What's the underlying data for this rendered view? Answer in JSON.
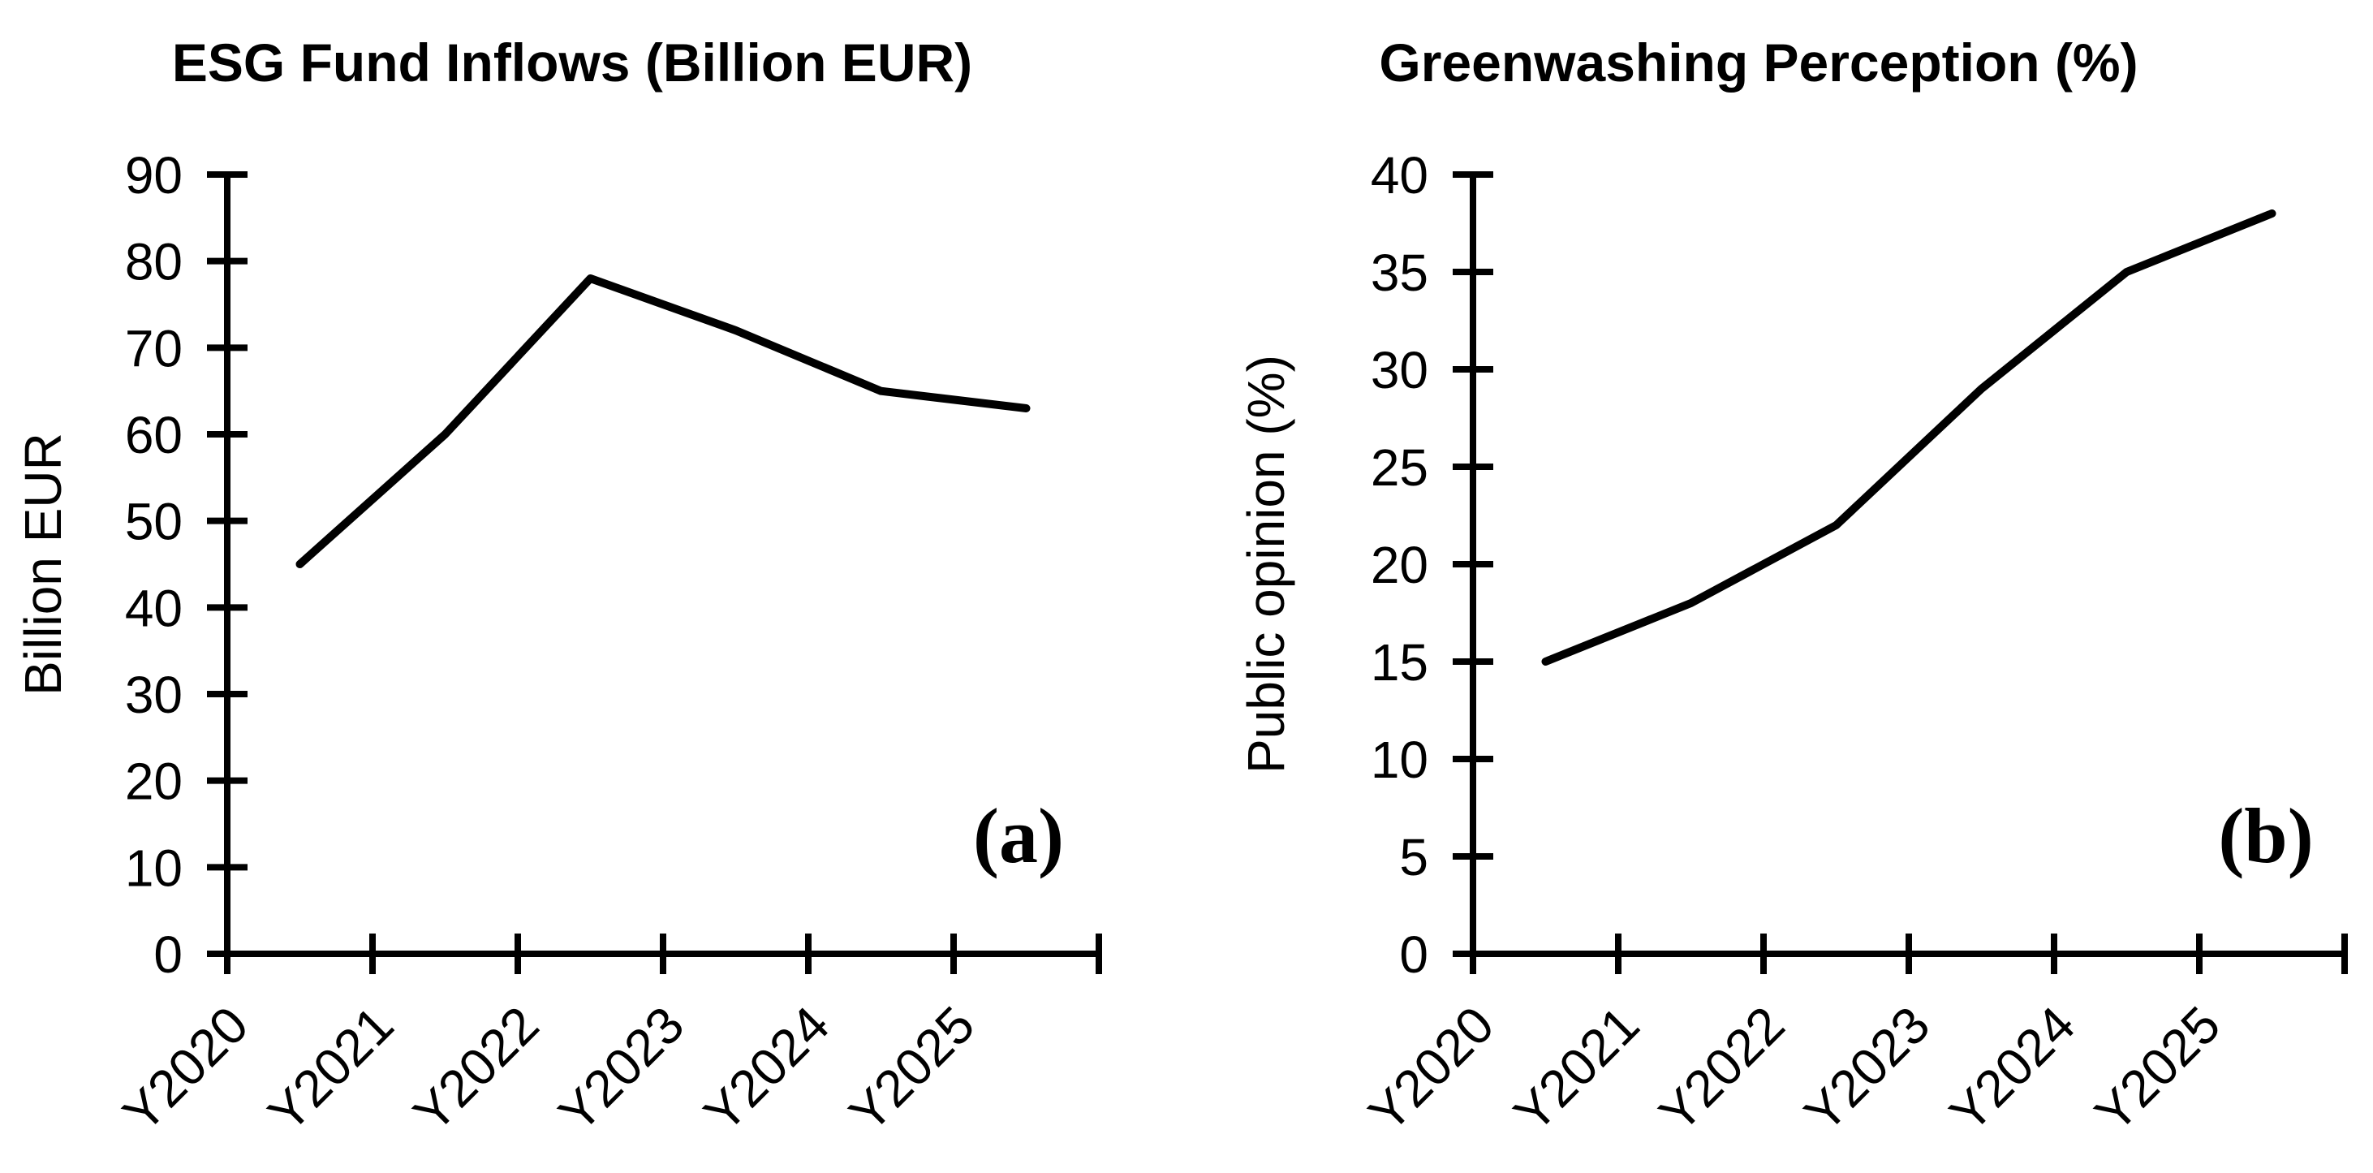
{
  "page": {
    "background_color": "#ffffff",
    "foreground_color": "#000000"
  },
  "chart_data": [
    {
      "type": "line",
      "title": "ESG Fund Inflows (Billion EUR)",
      "panel_label": "(a)",
      "categories": [
        "Y2020",
        "Y2021",
        "Y2022",
        "Y2023",
        "Y2024",
        "Y2025"
      ],
      "series": [
        {
          "values": [
            45,
            60,
            78,
            72,
            65,
            63
          ]
        }
      ],
      "xlabel": "",
      "ylabel": "Billion EUR",
      "ylim": [
        0,
        90
      ],
      "ytick_step": 10,
      "ytick_labels": [
        "0",
        "10",
        "20",
        "30",
        "40",
        "50",
        "60",
        "70",
        "80",
        "90"
      ],
      "grid": false,
      "legend": "none",
      "line_color": "#000000",
      "x_label_rotation_deg": 45
    },
    {
      "type": "line",
      "title": "Greenwashing Perception (%)",
      "panel_label": "(b)",
      "categories": [
        "Y2020",
        "Y2021",
        "Y2022",
        "Y2023",
        "Y2024",
        "Y2025"
      ],
      "series": [
        {
          "values": [
            15,
            18,
            22,
            29,
            35,
            38
          ]
        }
      ],
      "xlabel": "",
      "ylabel": "Public opinion (%)",
      "ylim": [
        0,
        40
      ],
      "ytick_step": 5,
      "ytick_labels": [
        "0",
        "5",
        "10",
        "15",
        "20",
        "25",
        "30",
        "35",
        "40"
      ],
      "grid": false,
      "legend": "none",
      "line_color": "#000000",
      "x_label_rotation_deg": 45
    }
  ]
}
